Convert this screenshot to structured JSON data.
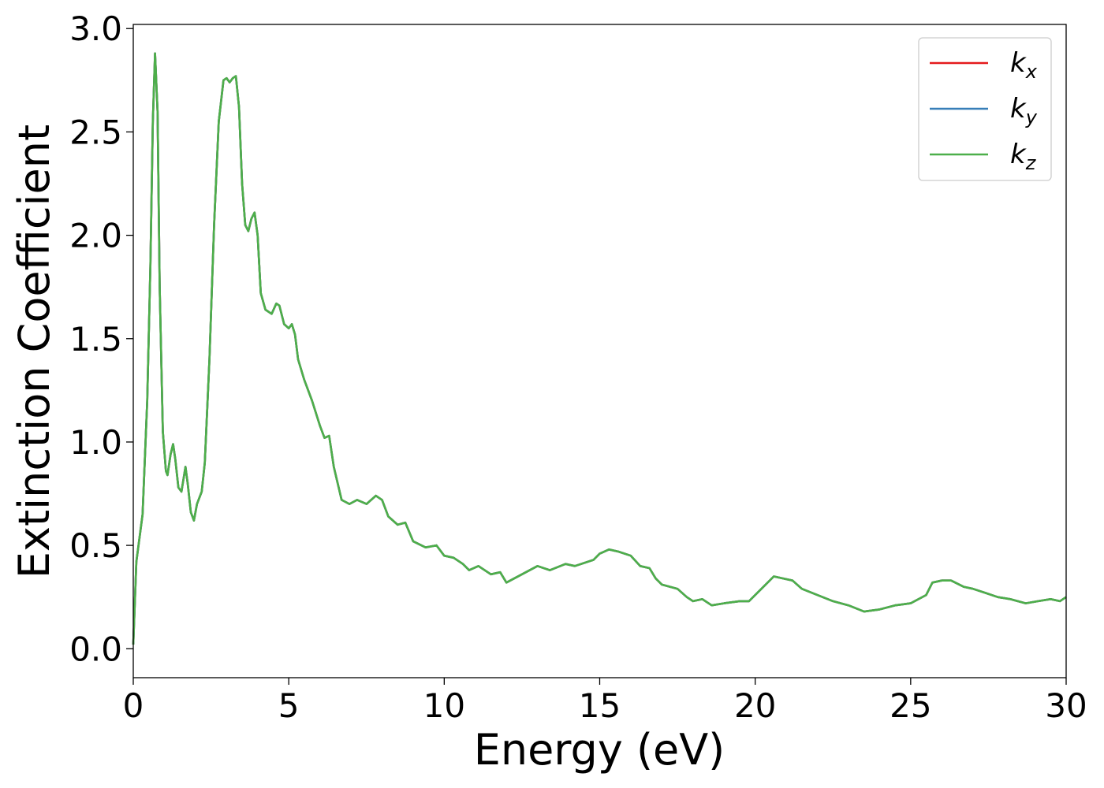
{
  "chart_data": {
    "type": "line",
    "xlabel": "Energy (eV)",
    "ylabel": "Extinction Coefficient",
    "xlim": [
      0,
      30
    ],
    "ylim": [
      -0.14,
      3.02
    ],
    "x_ticks": [
      "0",
      "5",
      "10",
      "15",
      "20",
      "25",
      "30"
    ],
    "y_ticks": [
      "0.0",
      "0.5",
      "1.0",
      "1.5",
      "2.0",
      "2.5",
      "3.0"
    ],
    "grid": false,
    "legend_position": "top-right",
    "series": [
      {
        "name": "k_x",
        "label_base": "k",
        "label_sub": "x",
        "color": "#e41a1c",
        "x": [
          0,
          0.1,
          0.3,
          0.45,
          0.55,
          0.63,
          0.7,
          0.78,
          0.85,
          0.95,
          1.05,
          1.1,
          1.2,
          1.28,
          1.35,
          1.45,
          1.55,
          1.68,
          1.75,
          1.85,
          1.95,
          2.05,
          2.2,
          2.3,
          2.45,
          2.6,
          2.75,
          2.9,
          3.0,
          3.1,
          3.2,
          3.3,
          3.4,
          3.5,
          3.6,
          3.7,
          3.8,
          3.9,
          4.0,
          4.1,
          4.25,
          4.45,
          4.6,
          4.7,
          4.85,
          5.0,
          5.1,
          5.2,
          5.3,
          5.5,
          5.75,
          6.0,
          6.15,
          6.3,
          6.45,
          6.7,
          6.95,
          7.2,
          7.5,
          7.8,
          8.0,
          8.2,
          8.5,
          8.75,
          9.0,
          9.4,
          9.75,
          10.0,
          10.3,
          10.6,
          10.8,
          11.1,
          11.5,
          11.8,
          12.0,
          12.5,
          13.0,
          13.4,
          13.9,
          14.2,
          14.8,
          15.0,
          15.3,
          15.6,
          16.0,
          16.3,
          16.6,
          16.8,
          17.0,
          17.5,
          17.8,
          18.0,
          18.3,
          18.6,
          19.0,
          19.5,
          19.8,
          20.2,
          20.6,
          20.9,
          21.2,
          21.5,
          22.0,
          22.5,
          23.0,
          23.5,
          24.0,
          24.5,
          25.0,
          25.5,
          25.7,
          26.0,
          26.3,
          26.7,
          27.0,
          27.4,
          27.8,
          28.2,
          28.7,
          29.1,
          29.5,
          29.8,
          30.0
        ],
        "y": [
          0.02,
          0.42,
          0.65,
          1.2,
          1.85,
          2.55,
          2.88,
          2.6,
          1.75,
          1.05,
          0.86,
          0.84,
          0.94,
          0.99,
          0.92,
          0.78,
          0.76,
          0.88,
          0.8,
          0.66,
          0.62,
          0.7,
          0.76,
          0.9,
          1.4,
          2.05,
          2.55,
          2.75,
          2.76,
          2.74,
          2.76,
          2.77,
          2.62,
          2.25,
          2.05,
          2.02,
          2.08,
          2.11,
          2.0,
          1.72,
          1.64,
          1.62,
          1.67,
          1.66,
          1.57,
          1.55,
          1.57,
          1.52,
          1.4,
          1.3,
          1.2,
          1.08,
          1.02,
          1.03,
          0.88,
          0.72,
          0.7,
          0.72,
          0.7,
          0.74,
          0.72,
          0.64,
          0.6,
          0.61,
          0.52,
          0.49,
          0.5,
          0.45,
          0.44,
          0.41,
          0.38,
          0.4,
          0.36,
          0.37,
          0.32,
          0.36,
          0.4,
          0.38,
          0.41,
          0.4,
          0.43,
          0.46,
          0.48,
          0.47,
          0.45,
          0.4,
          0.39,
          0.34,
          0.31,
          0.29,
          0.25,
          0.23,
          0.24,
          0.21,
          0.22,
          0.23,
          0.23,
          0.29,
          0.35,
          0.34,
          0.33,
          0.29,
          0.26,
          0.23,
          0.21,
          0.18,
          0.19,
          0.21,
          0.22,
          0.26,
          0.32,
          0.33,
          0.33,
          0.3,
          0.29,
          0.27,
          0.25,
          0.24,
          0.22,
          0.23,
          0.24,
          0.23,
          0.25
        ]
      },
      {
        "name": "k_y",
        "label_base": "k",
        "label_sub": "y",
        "color": "#377eb8",
        "x": [
          0,
          0.1,
          0.3,
          0.45,
          0.55,
          0.63,
          0.7,
          0.78,
          0.85,
          0.95,
          1.05,
          1.1,
          1.2,
          1.28,
          1.35,
          1.45,
          1.55,
          1.68,
          1.75,
          1.85,
          1.95,
          2.05,
          2.2,
          2.3,
          2.45,
          2.6,
          2.75,
          2.9,
          3.0,
          3.1,
          3.2,
          3.3,
          3.4,
          3.5,
          3.6,
          3.7,
          3.8,
          3.9,
          4.0,
          4.1,
          4.25,
          4.45,
          4.6,
          4.7,
          4.85,
          5.0,
          5.1,
          5.2,
          5.3,
          5.5,
          5.75,
          6.0,
          6.15,
          6.3,
          6.45,
          6.7,
          6.95,
          7.2,
          7.5,
          7.8,
          8.0,
          8.2,
          8.5,
          8.75,
          9.0,
          9.4,
          9.75,
          10.0,
          10.3,
          10.6,
          10.8,
          11.1,
          11.5,
          11.8,
          12.0,
          12.5,
          13.0,
          13.4,
          13.9,
          14.2,
          14.8,
          15.0,
          15.3,
          15.6,
          16.0,
          16.3,
          16.6,
          16.8,
          17.0,
          17.5,
          17.8,
          18.0,
          18.3,
          18.6,
          19.0,
          19.5,
          19.8,
          20.2,
          20.6,
          20.9,
          21.2,
          21.5,
          22.0,
          22.5,
          23.0,
          23.5,
          24.0,
          24.5,
          25.0,
          25.5,
          25.7,
          26.0,
          26.3,
          26.7,
          27.0,
          27.4,
          27.8,
          28.2,
          28.7,
          29.1,
          29.5,
          29.8,
          30.0
        ],
        "y": [
          0.02,
          0.42,
          0.65,
          1.2,
          1.85,
          2.55,
          2.88,
          2.6,
          1.75,
          1.05,
          0.86,
          0.84,
          0.94,
          0.99,
          0.92,
          0.78,
          0.76,
          0.88,
          0.8,
          0.66,
          0.62,
          0.7,
          0.76,
          0.9,
          1.4,
          2.05,
          2.55,
          2.75,
          2.76,
          2.74,
          2.76,
          2.77,
          2.62,
          2.25,
          2.05,
          2.02,
          2.08,
          2.11,
          2.0,
          1.72,
          1.64,
          1.62,
          1.67,
          1.66,
          1.57,
          1.55,
          1.57,
          1.52,
          1.4,
          1.3,
          1.2,
          1.08,
          1.02,
          1.03,
          0.88,
          0.72,
          0.7,
          0.72,
          0.7,
          0.74,
          0.72,
          0.64,
          0.6,
          0.61,
          0.52,
          0.49,
          0.5,
          0.45,
          0.44,
          0.41,
          0.38,
          0.4,
          0.36,
          0.37,
          0.32,
          0.36,
          0.4,
          0.38,
          0.41,
          0.4,
          0.43,
          0.46,
          0.48,
          0.47,
          0.45,
          0.4,
          0.39,
          0.34,
          0.31,
          0.29,
          0.25,
          0.23,
          0.24,
          0.21,
          0.22,
          0.23,
          0.23,
          0.29,
          0.35,
          0.34,
          0.33,
          0.29,
          0.26,
          0.23,
          0.21,
          0.18,
          0.19,
          0.21,
          0.22,
          0.26,
          0.32,
          0.33,
          0.33,
          0.3,
          0.29,
          0.27,
          0.25,
          0.24,
          0.22,
          0.23,
          0.24,
          0.23,
          0.25
        ]
      },
      {
        "name": "k_z",
        "label_base": "k",
        "label_sub": "z",
        "color": "#4daf4a",
        "x": [
          0,
          0.1,
          0.3,
          0.45,
          0.55,
          0.63,
          0.7,
          0.78,
          0.85,
          0.95,
          1.05,
          1.1,
          1.2,
          1.28,
          1.35,
          1.45,
          1.55,
          1.68,
          1.75,
          1.85,
          1.95,
          2.05,
          2.2,
          2.3,
          2.45,
          2.6,
          2.75,
          2.9,
          3.0,
          3.1,
          3.2,
          3.3,
          3.4,
          3.5,
          3.6,
          3.7,
          3.8,
          3.9,
          4.0,
          4.1,
          4.25,
          4.45,
          4.6,
          4.7,
          4.85,
          5.0,
          5.1,
          5.2,
          5.3,
          5.5,
          5.75,
          6.0,
          6.15,
          6.3,
          6.45,
          6.7,
          6.95,
          7.2,
          7.5,
          7.8,
          8.0,
          8.2,
          8.5,
          8.75,
          9.0,
          9.4,
          9.75,
          10.0,
          10.3,
          10.6,
          10.8,
          11.1,
          11.5,
          11.8,
          12.0,
          12.5,
          13.0,
          13.4,
          13.9,
          14.2,
          14.8,
          15.0,
          15.3,
          15.6,
          16.0,
          16.3,
          16.6,
          16.8,
          17.0,
          17.5,
          17.8,
          18.0,
          18.3,
          18.6,
          19.0,
          19.5,
          19.8,
          20.2,
          20.6,
          20.9,
          21.2,
          21.5,
          22.0,
          22.5,
          23.0,
          23.5,
          24.0,
          24.5,
          25.0,
          25.5,
          25.7,
          26.0,
          26.3,
          26.7,
          27.0,
          27.4,
          27.8,
          28.2,
          28.7,
          29.1,
          29.5,
          29.8,
          30.0
        ],
        "y": [
          0.02,
          0.42,
          0.65,
          1.2,
          1.85,
          2.55,
          2.88,
          2.6,
          1.75,
          1.05,
          0.86,
          0.84,
          0.94,
          0.99,
          0.92,
          0.78,
          0.76,
          0.88,
          0.8,
          0.66,
          0.62,
          0.7,
          0.76,
          0.9,
          1.4,
          2.05,
          2.55,
          2.75,
          2.76,
          2.74,
          2.76,
          2.77,
          2.62,
          2.25,
          2.05,
          2.02,
          2.08,
          2.11,
          2.0,
          1.72,
          1.64,
          1.62,
          1.67,
          1.66,
          1.57,
          1.55,
          1.57,
          1.52,
          1.4,
          1.3,
          1.2,
          1.08,
          1.02,
          1.03,
          0.88,
          0.72,
          0.7,
          0.72,
          0.7,
          0.74,
          0.72,
          0.64,
          0.6,
          0.61,
          0.52,
          0.49,
          0.5,
          0.45,
          0.44,
          0.41,
          0.38,
          0.4,
          0.36,
          0.37,
          0.32,
          0.36,
          0.4,
          0.38,
          0.41,
          0.4,
          0.43,
          0.46,
          0.48,
          0.47,
          0.45,
          0.4,
          0.39,
          0.34,
          0.31,
          0.29,
          0.25,
          0.23,
          0.24,
          0.21,
          0.22,
          0.23,
          0.23,
          0.29,
          0.35,
          0.34,
          0.33,
          0.29,
          0.26,
          0.23,
          0.21,
          0.18,
          0.19,
          0.21,
          0.22,
          0.26,
          0.32,
          0.33,
          0.33,
          0.3,
          0.29,
          0.27,
          0.25,
          0.24,
          0.22,
          0.23,
          0.24,
          0.23,
          0.25
        ]
      }
    ]
  }
}
